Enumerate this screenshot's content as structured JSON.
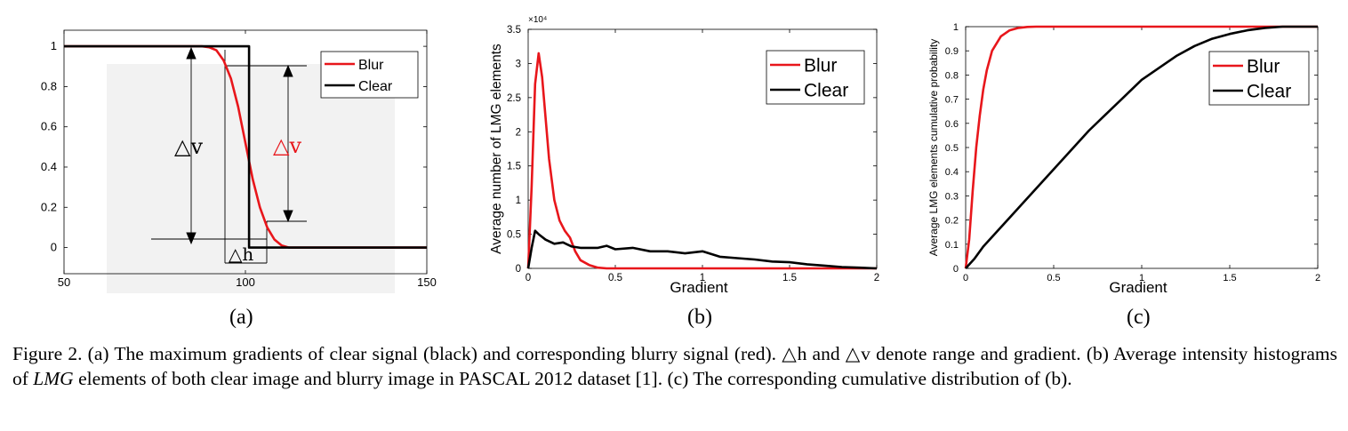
{
  "figure": {
    "subfigure_labels": [
      "(a)",
      "(b)",
      "(c)"
    ],
    "caption": {
      "prefix": "Figure 2. (a) The maximum gradients of clear signal (black) and corresponding blurry signal (red). △h and △v denote range and gradient. (b) Average intensity histograms of ",
      "emph": "LMG",
      "suffix": " elements of both clear image and blurry image in PASCAL 2012 dataset [1]. (c) The corresponding cumulative distribution of (b)."
    }
  },
  "colors": {
    "blur": "#e8161b",
    "clear": "#000000",
    "box": "#f2f2f2"
  },
  "chart_data": [
    {
      "id": "a",
      "type": "line",
      "title": "",
      "xlabel": "",
      "ylabel": "",
      "xlim": [
        50,
        150
      ],
      "ylim": [
        -0.13,
        1.08
      ],
      "xticks": [
        50,
        100,
        150
      ],
      "yticks": [
        0,
        0.2,
        0.4,
        0.6,
        0.8,
        1
      ],
      "ytick_labels": [
        "0",
        "0.2",
        "0.4",
        "0.6",
        "0.8",
        "1"
      ],
      "grid": false,
      "legend_position": "top-right",
      "series": [
        {
          "name": "Blur",
          "color": "#e8161b",
          "x": [
            50,
            88,
            90,
            92,
            94,
            96,
            98,
            100,
            102,
            104,
            106,
            108,
            110,
            112,
            150
          ],
          "y": [
            1,
            1,
            0.995,
            0.98,
            0.93,
            0.84,
            0.7,
            0.52,
            0.34,
            0.2,
            0.1,
            0.04,
            0.01,
            0,
            0
          ]
        },
        {
          "name": "Clear",
          "color": "#000000",
          "x": [
            50,
            101,
            101,
            150
          ],
          "y": [
            1,
            1,
            0,
            0
          ]
        }
      ],
      "annotations": [
        {
          "text": "△v",
          "color": "#000000"
        },
        {
          "text": "△v",
          "color": "#e8161b"
        },
        {
          "text": "△h",
          "color": "#000000"
        }
      ]
    },
    {
      "id": "b",
      "type": "line",
      "title": "",
      "xlabel": "Gradient",
      "ylabel": "Average number of LMG elements",
      "exponent_label": "×10⁴",
      "xlim": [
        0,
        2
      ],
      "ylim": [
        0,
        3.5
      ],
      "xticks": [
        0,
        0.5,
        1,
        1.5,
        2
      ],
      "xtick_labels": [
        "0",
        "0.5",
        "1",
        "1.5",
        "2"
      ],
      "yticks": [
        0,
        0.5,
        1,
        1.5,
        2,
        2.5,
        3,
        3.5
      ],
      "ytick_labels": [
        "0",
        "0.5",
        "1",
        "1.5",
        "2",
        "2.5",
        "3",
        "3.5"
      ],
      "grid": false,
      "legend_position": "top-right",
      "series": [
        {
          "name": "Blur",
          "color": "#e8161b",
          "x": [
            0,
            0.02,
            0.04,
            0.06,
            0.08,
            0.1,
            0.12,
            0.15,
            0.18,
            0.21,
            0.24,
            0.27,
            0.3,
            0.35,
            0.4,
            0.45,
            0.5,
            2
          ],
          "y": [
            0,
            1.2,
            2.7,
            3.15,
            2.8,
            2.2,
            1.6,
            1.0,
            0.7,
            0.55,
            0.45,
            0.25,
            0.12,
            0.05,
            0.01,
            0,
            0,
            0
          ]
        },
        {
          "name": "Clear",
          "color": "#000000",
          "x": [
            0,
            0.02,
            0.04,
            0.06,
            0.1,
            0.15,
            0.2,
            0.25,
            0.3,
            0.4,
            0.45,
            0.5,
            0.6,
            0.7,
            0.8,
            0.9,
            1.0,
            1.1,
            1.2,
            1.3,
            1.4,
            1.5,
            1.6,
            1.7,
            1.8,
            1.9,
            2.0
          ],
          "y": [
            0,
            0.3,
            0.55,
            0.5,
            0.42,
            0.36,
            0.38,
            0.32,
            0.3,
            0.3,
            0.33,
            0.28,
            0.3,
            0.25,
            0.25,
            0.22,
            0.25,
            0.17,
            0.15,
            0.13,
            0.1,
            0.09,
            0.06,
            0.04,
            0.02,
            0.01,
            0
          ]
        }
      ]
    },
    {
      "id": "c",
      "type": "line",
      "title": "",
      "xlabel": "Gradient",
      "ylabel": "Average LMG elements cumulative probability",
      "xlim": [
        0,
        2
      ],
      "ylim": [
        0,
        1
      ],
      "xticks": [
        0,
        0.5,
        1,
        1.5,
        2
      ],
      "xtick_labels": [
        "0",
        "0.5",
        "1",
        "1.5",
        "2"
      ],
      "yticks": [
        0,
        0.1,
        0.2,
        0.3,
        0.4,
        0.5,
        0.6,
        0.7,
        0.8,
        0.9,
        1
      ],
      "ytick_labels": [
        "0",
        "0.1",
        "0.2",
        "0.3",
        "0.4",
        "0.5",
        "0.6",
        "0.7",
        "0.8",
        "0.9",
        "1"
      ],
      "grid": false,
      "legend_position": "top-right",
      "series": [
        {
          "name": "Blur",
          "color": "#e8161b",
          "x": [
            0,
            0.02,
            0.04,
            0.06,
            0.08,
            0.1,
            0.12,
            0.15,
            0.2,
            0.25,
            0.3,
            0.35,
            0.4,
            0.5,
            2
          ],
          "y": [
            0,
            0.12,
            0.32,
            0.5,
            0.63,
            0.74,
            0.82,
            0.9,
            0.96,
            0.985,
            0.995,
            0.999,
            1,
            1,
            1
          ]
        },
        {
          "name": "Clear",
          "color": "#000000",
          "x": [
            0,
            0.05,
            0.1,
            0.2,
            0.3,
            0.4,
            0.5,
            0.6,
            0.7,
            0.8,
            0.9,
            1.0,
            1.1,
            1.2,
            1.3,
            1.4,
            1.5,
            1.6,
            1.7,
            1.8,
            1.9,
            2.0
          ],
          "y": [
            0,
            0.04,
            0.09,
            0.17,
            0.25,
            0.33,
            0.41,
            0.49,
            0.57,
            0.64,
            0.71,
            0.78,
            0.83,
            0.88,
            0.92,
            0.95,
            0.97,
            0.985,
            0.995,
            1,
            1,
            1
          ]
        }
      ]
    }
  ]
}
